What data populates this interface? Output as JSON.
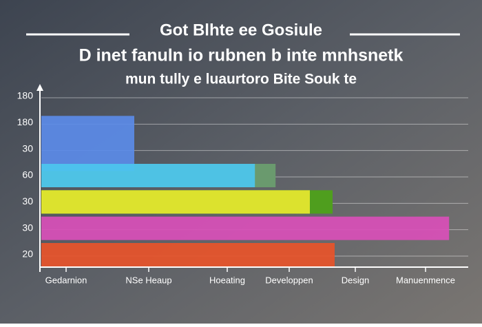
{
  "chart_data": {
    "type": "hbar",
    "title": "Got Blhte ee Gosiule",
    "subtitle": [
      "D inet fanuln io rubnen b inte mnhsnetk",
      "mun tully e luaurtoro Bite Souk te"
    ],
    "categories": [
      "180",
      "180",
      "30",
      "60",
      "30",
      "30",
      "20"
    ],
    "values": [
      null,
      22.5,
      null,
      51.7,
      65,
      98.7,
      71
    ],
    "colors": [
      "#5b8be8",
      "#5b8be8",
      "#5b8be8",
      "#4cc6ee",
      "#e8e830",
      "#d94fb8",
      "#e8542a"
    ],
    "secondary_values": [
      null,
      null,
      null,
      56.7,
      70.5,
      null,
      null
    ],
    "secondary_colors": [
      "#6a9a6e",
      "#6a9a6e",
      "#6a9a6e",
      "#6a9a6e",
      "#4f9e1e",
      "#4f9e1e",
      "#4f9e1e"
    ],
    "xlim": [
      0,
      100
    ],
    "xticks": [
      {
        "value": 6,
        "label": "Gedarnion"
      },
      {
        "value": 26,
        "label": "NSe Heaup"
      },
      {
        "value": 45,
        "label": "Hoeating"
      },
      {
        "value": 60,
        "label": "Developpen"
      },
      {
        "value": 76,
        "label": "Design"
      },
      {
        "value": 93,
        "label": "Manuenmence"
      }
    ],
    "grid": true
  }
}
